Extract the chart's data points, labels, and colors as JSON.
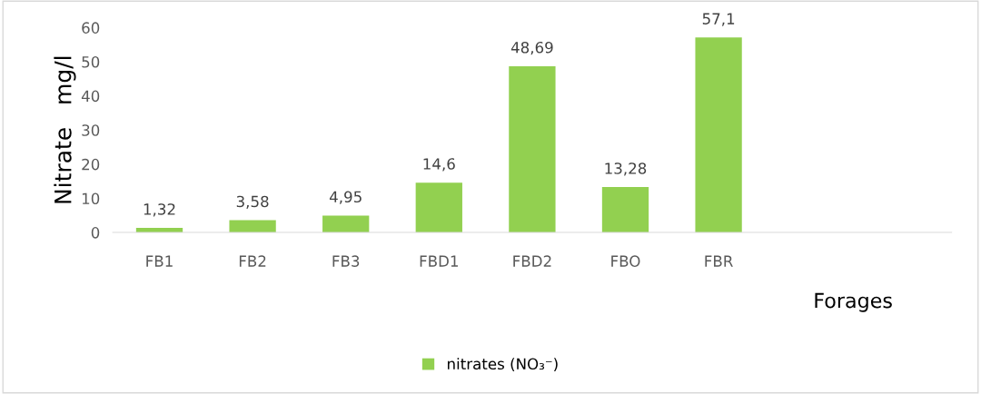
{
  "chart_data": {
    "type": "bar",
    "xlabel": "Forages",
    "ylabel": "Nitrate   mg/l",
    "categories": [
      "FB1",
      "FB2",
      "FB3",
      "FBD1",
      "FBD2",
      "FBO",
      "FBR"
    ],
    "series": [
      {
        "name": "nitrates (NO₃⁻)",
        "color": "#92d050",
        "values": [
          1.32,
          3.58,
          4.95,
          14.6,
          48.69,
          13.28,
          57.1
        ],
        "value_labels": [
          "1,32",
          "3,58",
          "4,95",
          "14,6",
          "48,69",
          "13,28",
          "57,1"
        ]
      }
    ],
    "ylim": [
      0,
      60
    ],
    "yticks": [
      0,
      10,
      20,
      30,
      40,
      50,
      60
    ],
    "grid": false,
    "legend": "bottom"
  }
}
